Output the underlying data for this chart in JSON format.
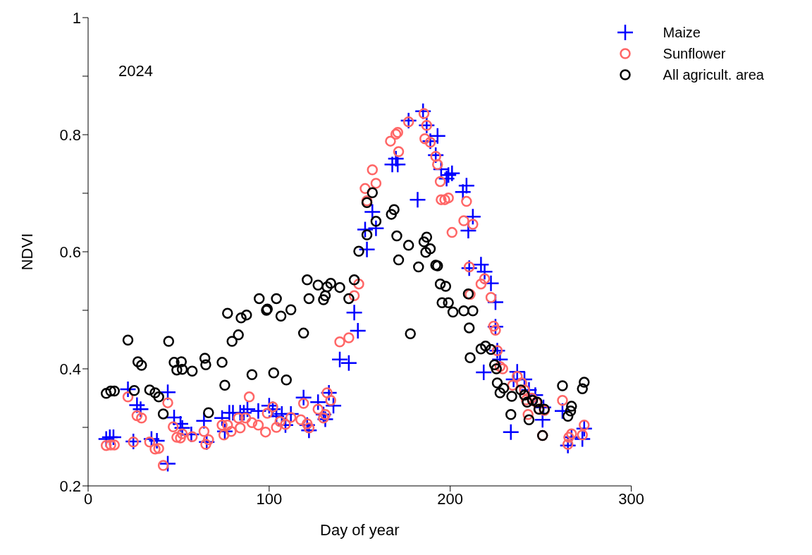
{
  "chart_data": {
    "type": "scatter",
    "xlabel": "Day of year",
    "ylabel": "NDVI",
    "annotations": [
      "2024"
    ],
    "xlim": [
      0,
      300
    ],
    "xticks": [
      0,
      100,
      200,
      300
    ],
    "ylim": [
      0.2,
      1
    ],
    "yticks": [
      0.2,
      {
        "value": 0.3,
        "label": null
      },
      0.4,
      {
        "value": 0.5,
        "label": null
      },
      0.6,
      {
        "value": 0.7,
        "label": null
      },
      0.8,
      {
        "value": 0.9,
        "label": null
      },
      1
    ],
    "grid": false,
    "legend": "top right",
    "series": [
      {
        "name": "Maize",
        "color": "#0000ff",
        "marker": "cross",
        "x": [
          10,
          12,
          14,
          22,
          25,
          27,
          29,
          35,
          38,
          44,
          44,
          47.5,
          51,
          52,
          57,
          64,
          65.5,
          74,
          75.5,
          78,
          80,
          84,
          86,
          88,
          94,
          100,
          102,
          104,
          107,
          109,
          112,
          119,
          121,
          122,
          127,
          130,
          131,
          133,
          135.5,
          139,
          144,
          147,
          149,
          153,
          154,
          157,
          159,
          168,
          170,
          171,
          177,
          182,
          185,
          187,
          189,
          192,
          193,
          195,
          198,
          199,
          201,
          207,
          209,
          210,
          210.5,
          212.5,
          217,
          218.5,
          219,
          222.5,
          225,
          225,
          226,
          227.5,
          233.5,
          235,
          237,
          241,
          243.5,
          247,
          251,
          251.5,
          262,
          265,
          267,
          273,
          274
        ],
        "values": [
          0.28,
          0.283,
          0.283,
          0.365,
          0.276,
          0.338,
          0.331,
          0.28,
          0.277,
          0.238,
          0.36,
          0.317,
          0.306,
          0.299,
          0.288,
          0.311,
          0.275,
          0.316,
          0.293,
          0.325,
          0.325,
          0.325,
          0.325,
          0.331,
          0.328,
          0.337,
          0.331,
          0.319,
          0.323,
          0.304,
          0.323,
          0.351,
          0.304,
          0.295,
          0.343,
          0.322,
          0.314,
          0.359,
          0.337,
          0.416,
          0.41,
          0.496,
          0.465,
          0.638,
          0.604,
          0.668,
          0.64,
          0.749,
          0.759,
          0.749,
          0.824,
          0.689,
          0.84,
          0.816,
          0.789,
          0.765,
          0.798,
          0.741,
          0.725,
          0.731,
          0.734,
          0.702,
          0.713,
          0.636,
          0.572,
          0.66,
          0.578,
          0.394,
          0.566,
          0.546,
          0.514,
          0.472,
          0.431,
          0.416,
          0.292,
          0.382,
          0.395,
          0.382,
          0.364,
          0.355,
          0.313,
          0.334,
          0.328,
          0.269,
          0.283,
          0.28,
          0.298
        ]
      },
      {
        "name": "Sunflower",
        "color": "#ff6666",
        "marker": "circle",
        "x": [
          10,
          12.5,
          14.5,
          22,
          25,
          27,
          29.5,
          34,
          37,
          39,
          41.5,
          44,
          47,
          49,
          51,
          52,
          57.5,
          64,
          65,
          66.5,
          74,
          75,
          77,
          79,
          83,
          84,
          87,
          89,
          90.5,
          94,
          98,
          99,
          102,
          104,
          106,
          109,
          112,
          117.5,
          119,
          121,
          122,
          127,
          130,
          131,
          132,
          134,
          139,
          144,
          147,
          149.5,
          153,
          154,
          157,
          159,
          167,
          170,
          171,
          171.5,
          177,
          185.5,
          186,
          187,
          189,
          192,
          193,
          194.5,
          195,
          197,
          199,
          201,
          207.5,
          209,
          210.5,
          211,
          212.5,
          217,
          219,
          222.5,
          224,
          225,
          226,
          227.5,
          229,
          234.5,
          237,
          239.5,
          241,
          242,
          243,
          245,
          247.5,
          249,
          251,
          252,
          262,
          265,
          265.5,
          267,
          273,
          274
        ],
        "values": [
          0.269,
          0.27,
          0.27,
          0.352,
          0.275,
          0.32,
          0.316,
          0.275,
          0.263,
          0.264,
          0.235,
          0.342,
          0.301,
          0.283,
          0.282,
          0.289,
          0.284,
          0.293,
          0.271,
          0.279,
          0.304,
          0.287,
          0.304,
          0.293,
          0.316,
          0.299,
          0.316,
          0.352,
          0.308,
          0.304,
          0.292,
          0.324,
          0.335,
          0.3,
          0.31,
          0.305,
          0.317,
          0.313,
          0.341,
          0.306,
          0.299,
          0.331,
          0.316,
          0.322,
          0.359,
          0.346,
          0.446,
          0.453,
          0.525,
          0.545,
          0.708,
          0.687,
          0.74,
          0.717,
          0.789,
          0.801,
          0.804,
          0.771,
          0.822,
          0.836,
          0.793,
          0.816,
          0.787,
          0.763,
          0.749,
          0.72,
          0.689,
          0.689,
          0.692,
          0.633,
          0.653,
          0.686,
          0.574,
          0.527,
          0.647,
          0.545,
          0.554,
          0.522,
          0.473,
          0.466,
          0.431,
          0.404,
          0.4,
          0.372,
          0.387,
          0.376,
          0.364,
          0.347,
          0.322,
          0.35,
          0.343,
          0.331,
          0.286,
          0.329,
          0.346,
          0.271,
          0.283,
          0.289,
          0.287,
          0.304
        ]
      },
      {
        "name": "All agricult. area",
        "color": "#000000",
        "marker": "circle",
        "x": [
          10,
          12.5,
          14.5,
          22,
          25.5,
          27.5,
          29.5,
          34,
          37,
          39,
          41.5,
          44.5,
          47.5,
          49,
          51.5,
          52,
          57.5,
          64.5,
          65,
          66.5,
          74,
          75.5,
          77,
          79.5,
          83,
          84.5,
          87.5,
          90.5,
          94.5,
          98.5,
          99,
          102.5,
          104,
          106.5,
          109.5,
          112,
          119,
          121,
          122,
          127,
          130,
          131,
          132,
          134,
          139,
          144,
          147,
          149.5,
          154,
          154,
          157,
          159,
          167.5,
          169,
          170.5,
          171.5,
          177,
          178,
          182.5,
          185.5,
          186.5,
          187,
          189,
          192,
          193,
          194.5,
          195.5,
          197.5,
          199,
          201.5,
          207.5,
          210,
          210.5,
          211,
          212.5,
          217,
          219.5,
          222.5,
          224.5,
          225.5,
          226,
          227.5,
          229.5,
          233.5,
          234,
          239,
          241,
          242.5,
          243.5,
          245.5,
          248,
          249,
          251,
          252,
          262,
          265,
          266.5,
          267,
          273,
          274
        ],
        "values": [
          0.358,
          0.362,
          0.362,
          0.449,
          0.363,
          0.412,
          0.406,
          0.364,
          0.359,
          0.352,
          0.323,
          0.447,
          0.411,
          0.398,
          0.412,
          0.399,
          0.396,
          0.418,
          0.407,
          0.325,
          0.411,
          0.372,
          0.495,
          0.447,
          0.458,
          0.487,
          0.492,
          0.39,
          0.52,
          0.5,
          0.502,
          0.393,
          0.52,
          0.49,
          0.381,
          0.501,
          0.461,
          0.552,
          0.52,
          0.543,
          0.518,
          0.525,
          0.54,
          0.546,
          0.539,
          0.52,
          0.552,
          0.601,
          0.629,
          0.684,
          0.701,
          0.652,
          0.664,
          0.672,
          0.627,
          0.586,
          0.611,
          0.46,
          0.574,
          0.617,
          0.599,
          0.625,
          0.605,
          0.577,
          0.576,
          0.545,
          0.513,
          0.541,
          0.513,
          0.497,
          0.499,
          0.528,
          0.47,
          0.419,
          0.499,
          0.434,
          0.439,
          0.433,
          0.407,
          0.4,
          0.376,
          0.359,
          0.367,
          0.322,
          0.353,
          0.364,
          0.355,
          0.343,
          0.313,
          0.346,
          0.343,
          0.331,
          0.286,
          0.331,
          0.371,
          0.319,
          0.328,
          0.336,
          0.366,
          0.377
        ]
      }
    ]
  }
}
